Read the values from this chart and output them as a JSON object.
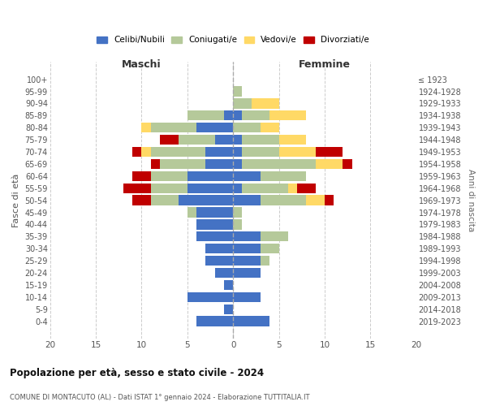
{
  "age_groups": [
    "0-4",
    "5-9",
    "10-14",
    "15-19",
    "20-24",
    "25-29",
    "30-34",
    "35-39",
    "40-44",
    "45-49",
    "50-54",
    "55-59",
    "60-64",
    "65-69",
    "70-74",
    "75-79",
    "80-84",
    "85-89",
    "90-94",
    "95-99",
    "100+"
  ],
  "birth_years": [
    "2019-2023",
    "2014-2018",
    "2009-2013",
    "2004-2008",
    "1999-2003",
    "1994-1998",
    "1989-1993",
    "1984-1988",
    "1979-1983",
    "1974-1978",
    "1969-1973",
    "1964-1968",
    "1959-1963",
    "1954-1958",
    "1949-1953",
    "1944-1948",
    "1939-1943",
    "1934-1938",
    "1929-1933",
    "1924-1928",
    "≤ 1923"
  ],
  "colors": {
    "celibe": "#4472c4",
    "coniugato": "#b5c99a",
    "vedovo": "#ffd966",
    "divorziato": "#c00000"
  },
  "male": {
    "celibe": [
      4,
      1,
      5,
      1,
      2,
      3,
      3,
      4,
      4,
      4,
      6,
      5,
      5,
      3,
      3,
      2,
      4,
      1,
      0,
      0,
      0
    ],
    "coniugato": [
      0,
      0,
      0,
      0,
      0,
      0,
      0,
      0,
      0,
      1,
      3,
      4,
      4,
      5,
      6,
      4,
      5,
      4,
      0,
      0,
      0
    ],
    "vedovo": [
      0,
      0,
      0,
      0,
      0,
      0,
      0,
      0,
      0,
      0,
      0,
      0,
      0,
      0,
      1,
      0,
      1,
      0,
      0,
      0,
      0
    ],
    "divorziato": [
      0,
      0,
      0,
      0,
      0,
      0,
      0,
      0,
      0,
      0,
      2,
      3,
      2,
      1,
      1,
      2,
      0,
      0,
      0,
      0,
      0
    ]
  },
  "female": {
    "nubile": [
      4,
      0,
      3,
      0,
      3,
      3,
      3,
      3,
      0,
      0,
      3,
      1,
      3,
      1,
      1,
      1,
      0,
      1,
      0,
      0,
      0
    ],
    "coniugata": [
      0,
      0,
      0,
      0,
      0,
      1,
      2,
      3,
      1,
      1,
      5,
      5,
      5,
      8,
      4,
      4,
      3,
      3,
      2,
      1,
      0
    ],
    "vedova": [
      0,
      0,
      0,
      0,
      0,
      0,
      0,
      0,
      0,
      0,
      2,
      1,
      0,
      3,
      4,
      3,
      2,
      4,
      3,
      0,
      0
    ],
    "divorziata": [
      0,
      0,
      0,
      0,
      0,
      0,
      0,
      0,
      0,
      0,
      1,
      2,
      0,
      1,
      3,
      0,
      0,
      0,
      0,
      0,
      0
    ]
  },
  "xlim": [
    -20,
    20
  ],
  "xticks": [
    -20,
    -15,
    -10,
    -5,
    0,
    5,
    10,
    15,
    20
  ],
  "xticklabels": [
    "20",
    "15",
    "10",
    "5",
    "0",
    "5",
    "10",
    "15",
    "20"
  ],
  "title": "Popolazione per età, sesso e stato civile - 2024",
  "subtitle": "COMUNE DI MONTACUTO (AL) - Dati ISTAT 1° gennaio 2024 - Elaborazione TUTTITALIA.IT",
  "ylabel_left": "Fasce di età",
  "ylabel_right": "Anni di nascita",
  "label_maschi": "Maschi",
  "label_femmine": "Femmine",
  "legend_labels": [
    "Celibi/Nubili",
    "Coniugati/e",
    "Vedovi/e",
    "Divorziati/e"
  ]
}
